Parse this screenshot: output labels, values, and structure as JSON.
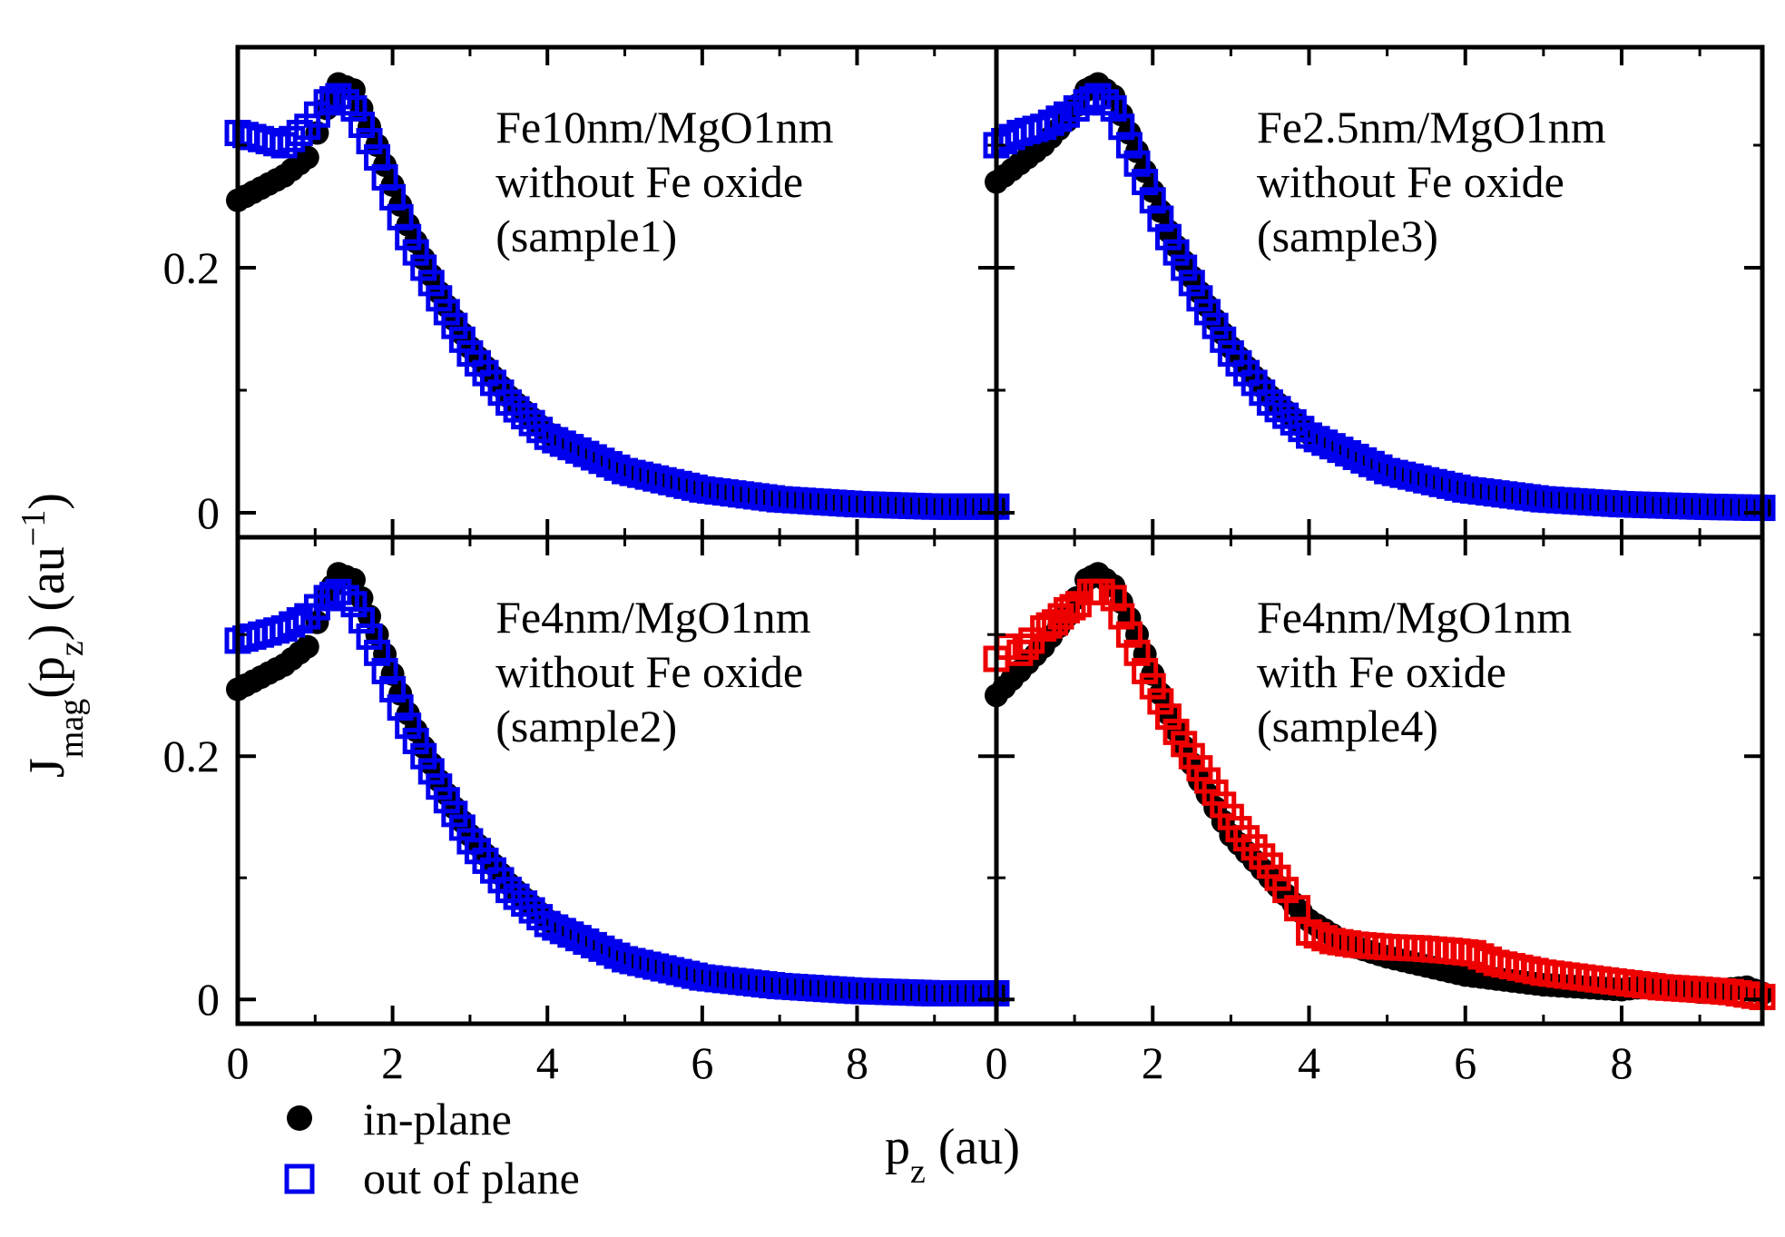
{
  "figure": {
    "xlabel_main": "p",
    "xlabel_sub": "z",
    "xlabel_unit": " (au)",
    "ylabel_main": "J",
    "ylabel_sub1": "mag",
    "ylabel_mid": "(p",
    "ylabel_sub2": "z",
    "ylabel_end": ") (au",
    "ylabel_sup": "−1",
    "ylabel_close": ")",
    "legend": [
      {
        "label": "in-plane",
        "marker": "filled-circle",
        "color": "#000000"
      },
      {
        "label": "out of plane",
        "marker": "open-square",
        "color": "#0000ee"
      }
    ]
  },
  "chart_data": [
    {
      "type": "scatter",
      "panel": "top-left",
      "label_lines": [
        "Fe10nm/MgO1nm",
        "without Fe oxide",
        "(sample1)"
      ],
      "xlim": [
        0,
        9.8
      ],
      "ylim": [
        -0.02,
        0.38
      ],
      "xticks": [
        0,
        2,
        4,
        6,
        8
      ],
      "yticks": [
        0,
        0.2
      ],
      "xticklabels": [],
      "yticklabels": [
        "0",
        "0.2"
      ],
      "series": [
        {
          "name": "in-plane",
          "color": "#000000",
          "marker": "circle",
          "x": [
            0,
            0.3,
            0.6,
            0.9,
            1.15,
            1.3,
            1.5,
            1.8,
            2.2,
            2.6,
            3.0,
            3.5,
            4.0,
            5.0,
            6.0,
            7.0,
            8.0,
            9.0,
            9.8
          ],
          "y": [
            0.255,
            0.265,
            0.275,
            0.29,
            0.33,
            0.35,
            0.345,
            0.3,
            0.235,
            0.18,
            0.135,
            0.095,
            0.065,
            0.035,
            0.02,
            0.012,
            0.008,
            0.005,
            0.005
          ]
        },
        {
          "name": "out of plane",
          "color": "#0000ee",
          "marker": "open-square",
          "x": [
            0,
            0.3,
            0.6,
            0.9,
            1.15,
            1.3,
            1.5,
            1.8,
            2.2,
            2.6,
            3.0,
            3.5,
            4.0,
            5.0,
            6.0,
            7.0,
            8.0,
            9.0,
            9.8
          ],
          "y": [
            0.31,
            0.305,
            0.3,
            0.315,
            0.335,
            0.34,
            0.33,
            0.29,
            0.225,
            0.175,
            0.13,
            0.09,
            0.062,
            0.034,
            0.019,
            0.011,
            0.007,
            0.005,
            0.005
          ]
        }
      ]
    },
    {
      "type": "scatter",
      "panel": "top-right",
      "label_lines": [
        "Fe2.5nm/MgO1nm",
        "without Fe oxide",
        "(sample3)"
      ],
      "xlim": [
        0,
        9.8
      ],
      "ylim": [
        -0.02,
        0.38
      ],
      "xticks": [
        0,
        2,
        4,
        6,
        8
      ],
      "yticks": [
        0,
        0.2
      ],
      "xticklabels": [],
      "yticklabels": [],
      "series": [
        {
          "name": "in-plane",
          "color": "#000000",
          "marker": "circle",
          "x": [
            0,
            0.3,
            0.6,
            0.9,
            1.15,
            1.3,
            1.5,
            1.8,
            2.2,
            2.6,
            3.0,
            3.5,
            4.0,
            5.0,
            6.0,
            7.0,
            8.0,
            9.0,
            9.8
          ],
          "y": [
            0.27,
            0.285,
            0.3,
            0.32,
            0.345,
            0.35,
            0.34,
            0.295,
            0.23,
            0.18,
            0.135,
            0.095,
            0.065,
            0.035,
            0.02,
            0.012,
            0.008,
            0.005,
            0.004
          ]
        },
        {
          "name": "out of plane",
          "color": "#0000ee",
          "marker": "open-square",
          "x": [
            0,
            0.3,
            0.6,
            0.9,
            1.15,
            1.3,
            1.5,
            1.8,
            2.2,
            2.6,
            3.0,
            3.5,
            4.0,
            5.0,
            6.0,
            7.0,
            8.0,
            9.0,
            9.8
          ],
          "y": [
            0.3,
            0.31,
            0.315,
            0.325,
            0.335,
            0.34,
            0.33,
            0.285,
            0.225,
            0.175,
            0.13,
            0.09,
            0.063,
            0.034,
            0.019,
            0.011,
            0.007,
            0.005,
            0.004
          ]
        }
      ]
    },
    {
      "type": "scatter",
      "panel": "bottom-left",
      "label_lines": [
        "Fe4nm/MgO1nm",
        "without Fe oxide",
        "(sample2)"
      ],
      "xlim": [
        0,
        9.8
      ],
      "ylim": [
        -0.02,
        0.38
      ],
      "xticks": [
        0,
        2,
        4,
        6,
        8
      ],
      "yticks": [
        0,
        0.2
      ],
      "xticklabels": [
        "0",
        "2",
        "4",
        "6",
        "8"
      ],
      "yticklabels": [
        "0",
        "0.2"
      ],
      "series": [
        {
          "name": "in-plane",
          "color": "#000000",
          "marker": "circle",
          "x": [
            0,
            0.3,
            0.6,
            0.9,
            1.15,
            1.3,
            1.5,
            1.8,
            2.2,
            2.6,
            3.0,
            3.5,
            4.0,
            5.0,
            6.0,
            7.0,
            8.0,
            9.0,
            9.8
          ],
          "y": [
            0.255,
            0.265,
            0.275,
            0.29,
            0.33,
            0.35,
            0.345,
            0.3,
            0.235,
            0.18,
            0.135,
            0.095,
            0.065,
            0.035,
            0.02,
            0.012,
            0.008,
            0.005,
            0.005
          ]
        },
        {
          "name": "out of plane",
          "color": "#0000ee",
          "marker": "open-square",
          "x": [
            0,
            0.3,
            0.6,
            0.9,
            1.15,
            1.3,
            1.5,
            1.8,
            2.2,
            2.6,
            3.0,
            3.5,
            4.0,
            5.0,
            6.0,
            7.0,
            8.0,
            9.0,
            9.8
          ],
          "y": [
            0.295,
            0.3,
            0.305,
            0.315,
            0.33,
            0.335,
            0.325,
            0.285,
            0.225,
            0.175,
            0.13,
            0.09,
            0.062,
            0.033,
            0.018,
            0.011,
            0.007,
            0.005,
            0.005
          ]
        }
      ]
    },
    {
      "type": "scatter",
      "panel": "bottom-right",
      "label_lines": [
        "Fe4nm/MgO1nm",
        "with Fe oxide",
        "(sample4)"
      ],
      "xlim": [
        0,
        9.8
      ],
      "ylim": [
        -0.02,
        0.38
      ],
      "xticks": [
        0,
        2,
        4,
        6,
        8
      ],
      "yticks": [
        0,
        0.2
      ],
      "xticklabels": [
        "0",
        "2",
        "4",
        "6",
        "8"
      ],
      "yticklabels": [],
      "series": [
        {
          "name": "in-plane",
          "color": "#000000",
          "marker": "circle",
          "x": [
            0,
            0.3,
            0.6,
            0.9,
            1.15,
            1.3,
            1.5,
            1.8,
            2.2,
            2.6,
            3.0,
            3.5,
            4.0,
            4.5,
            5.0,
            6.0,
            7.0,
            8.0,
            8.5,
            9.0,
            9.6,
            9.8
          ],
          "y": [
            0.25,
            0.27,
            0.29,
            0.315,
            0.345,
            0.35,
            0.34,
            0.3,
            0.235,
            0.18,
            0.135,
            0.1,
            0.065,
            0.045,
            0.035,
            0.02,
            0.012,
            0.008,
            0.012,
            0.006,
            0.01,
            0.005
          ]
        },
        {
          "name": "out of plane",
          "color": "#ee0000",
          "marker": "open-square",
          "x": [
            0,
            0.15,
            0.3,
            0.45,
            0.6,
            0.75,
            0.9,
            1.05,
            1.2,
            1.35,
            1.5,
            1.7,
            1.9,
            2.1,
            2.3,
            2.5,
            2.7,
            2.9,
            3.1,
            3.3,
            3.5,
            3.7,
            3.85,
            4.0,
            4.3,
            4.6,
            5.0,
            5.4,
            5.8,
            6.1,
            6.4,
            7.0,
            7.5,
            8.0,
            8.5,
            9.0,
            9.4,
            9.8
          ],
          "y": [
            0.28,
            0.29,
            0.285,
            0.295,
            0.305,
            0.31,
            0.32,
            0.325,
            0.335,
            0.335,
            0.33,
            0.3,
            0.27,
            0.245,
            0.22,
            0.2,
            0.18,
            0.16,
            0.14,
            0.125,
            0.11,
            0.09,
            0.075,
            0.055,
            0.048,
            0.045,
            0.043,
            0.042,
            0.04,
            0.038,
            0.03,
            0.022,
            0.018,
            0.014,
            0.01,
            0.008,
            0.006,
            0.002
          ]
        }
      ]
    }
  ]
}
